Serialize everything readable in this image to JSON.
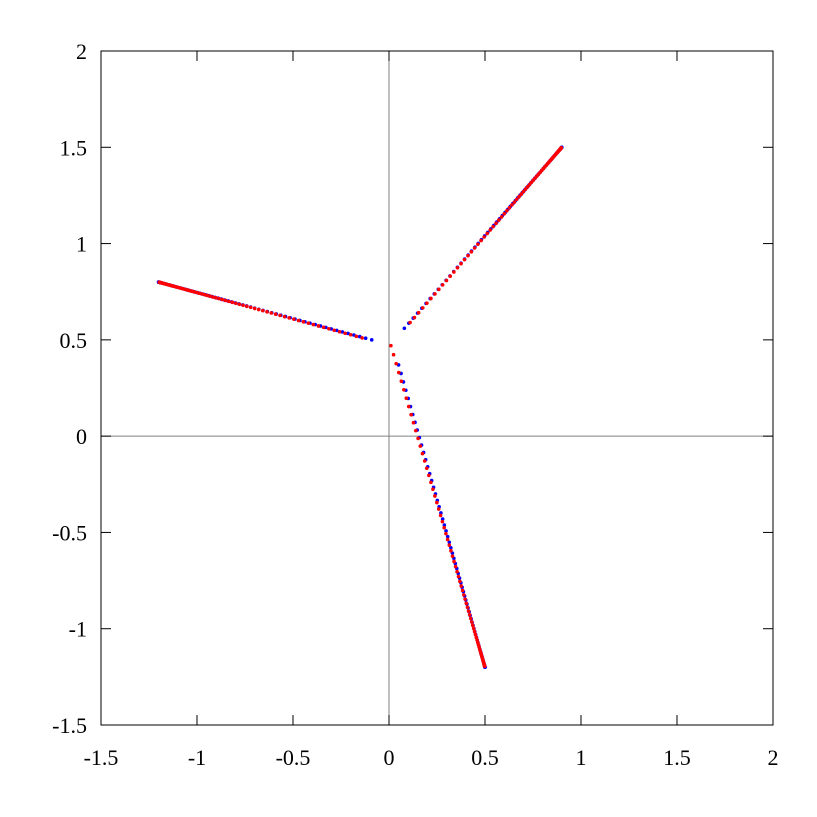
{
  "chart_data": {
    "type": "scatter",
    "title": "",
    "xlabel": "",
    "ylabel": "",
    "xlim": [
      -1.5,
      2
    ],
    "ylim": [
      -1.5,
      2
    ],
    "xticks": [
      "-1.5",
      "-1",
      "-0.5",
      "0",
      "0.5",
      "1",
      "1.5",
      "2"
    ],
    "yticks": [
      "-1.5",
      "-1",
      "-0.5",
      "0",
      "0.5",
      "1",
      "1.5",
      "2"
    ],
    "grid": false,
    "zero_axes": true,
    "colors": {
      "series_a": "#0000ff",
      "series_b": "#ff0000",
      "zero_axes": "#808080"
    },
    "series": [
      {
        "color": "#0000ff",
        "branches": [
          {
            "start": [
              -1.2,
              0.8
            ],
            "end": [
              -0.09,
              0.5
            ]
          },
          {
            "start": [
              0.9,
              1.5
            ],
            "end": [
              0.08,
              0.56
            ]
          },
          {
            "start": [
              0.5,
              -1.2
            ],
            "end": [
              0.05,
              0.37
            ]
          }
        ]
      },
      {
        "color": "#ff0000",
        "branches": [
          {
            "start": [
              -1.2,
              0.8
            ],
            "end": [
              -0.14,
              0.51
            ]
          },
          {
            "start": [
              0.9,
              1.5
            ],
            "end": [
              0.11,
              0.59
            ]
          },
          {
            "start": [
              0.5,
              -1.2
            ],
            "end": [
              0.01,
              0.47
            ]
          }
        ]
      }
    ]
  }
}
